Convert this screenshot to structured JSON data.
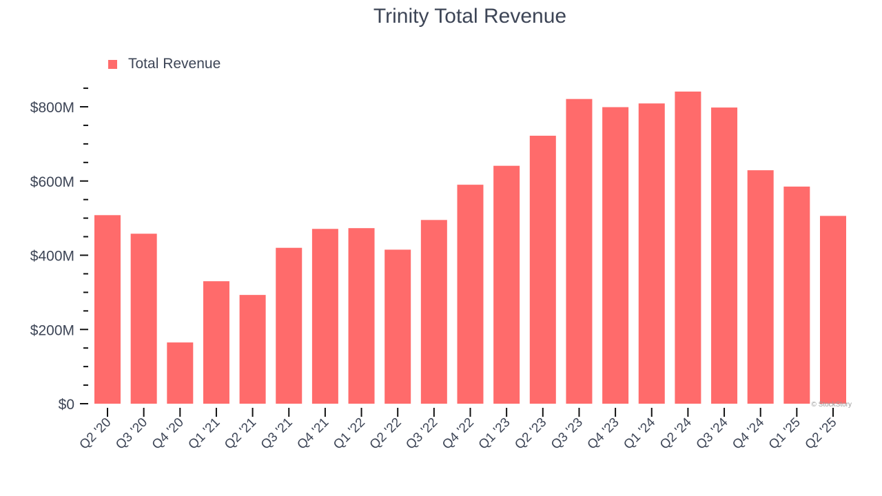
{
  "chart_data": {
    "type": "bar",
    "title": "Trinity Total Revenue",
    "xlabel": "",
    "ylabel": "",
    "legend": {
      "position": "top-left",
      "entries": [
        "Total Revenue"
      ]
    },
    "grid": false,
    "ylim": [
      0,
      880
    ],
    "yticks": [
      {
        "value": 0,
        "label": "$0"
      },
      {
        "value": 200,
        "label": "$200M"
      },
      {
        "value": 400,
        "label": "$400M"
      },
      {
        "value": 600,
        "label": "$600M"
      },
      {
        "value": 800,
        "label": "$800M"
      }
    ],
    "categories": [
      "Q2 '20",
      "Q3 '20",
      "Q4 '20",
      "Q1 '21",
      "Q2 '21",
      "Q3 '21",
      "Q4 '21",
      "Q1 '22",
      "Q2 '22",
      "Q3 '22",
      "Q4 '22",
      "Q1 '23",
      "Q2 '23",
      "Q3 '23",
      "Q4 '23",
      "Q1 '24",
      "Q2 '24",
      "Q3 '24",
      "Q4 '24",
      "Q1 '25",
      "Q2 '25"
    ],
    "series": [
      {
        "name": "Total Revenue",
        "color": "#ff6b6b",
        "values": [
          508,
          458,
          165,
          330,
          293,
          420,
          471,
          473,
          415,
          495,
          590,
          641,
          722,
          821,
          799,
          809,
          841,
          798,
          629,
          585,
          506
        ]
      }
    ]
  },
  "watermark": "© StockStory"
}
